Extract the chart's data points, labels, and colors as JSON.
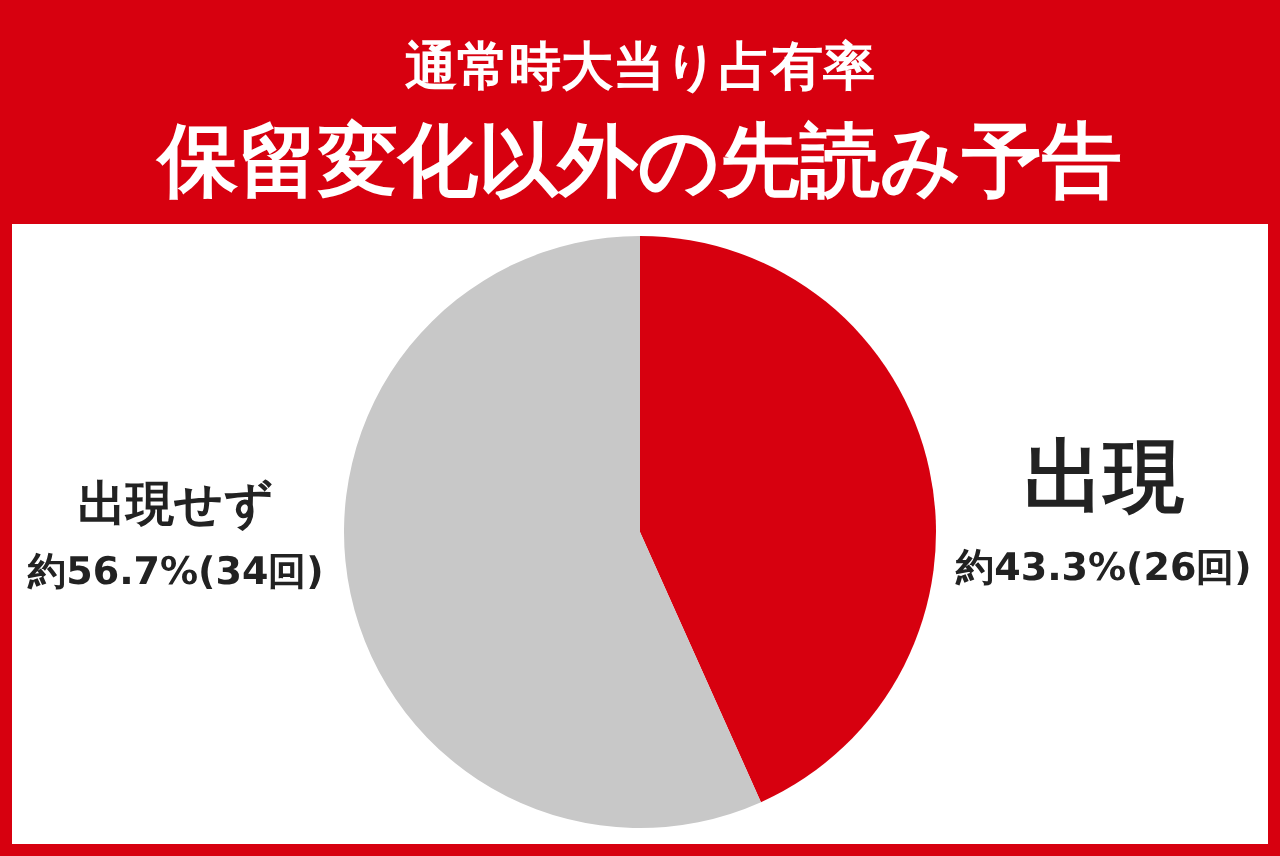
{
  "chart_data": {
    "type": "pie",
    "title": "通常時大当り占有率",
    "subtitle": "保留変化以外の先読み予告",
    "categories": [
      "出現",
      "出現せず"
    ],
    "values": [
      43.3,
      56.7
    ],
    "colors": [
      "#d7000f",
      "#c8c8c8"
    ],
    "value_labels": [
      "約43.3%(26回)",
      "約56.7%(34回)"
    ]
  }
}
